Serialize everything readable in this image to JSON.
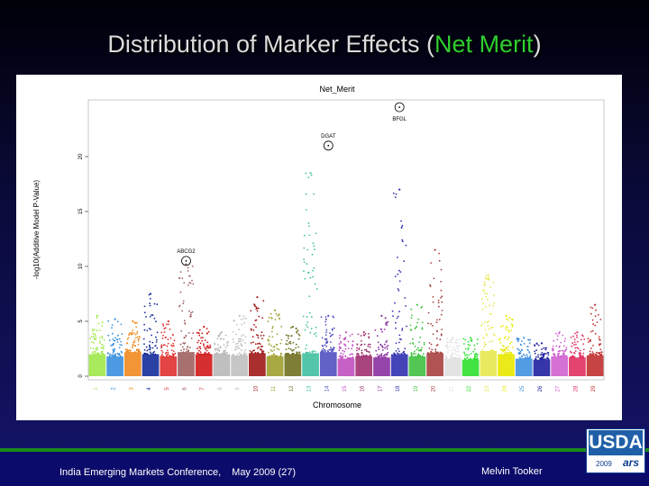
{
  "slide": {
    "title_prefix": "Distribution of Marker Effects (",
    "title_highlight": "Net Merit",
    "title_suffix": ")"
  },
  "footer": {
    "conference": "India Emerging Markets Conference,",
    "date": "May 2009 (27)",
    "presenter": "Melvin Tooker"
  },
  "logo": {
    "name": "USDA",
    "year": "2009",
    "agency": "ars"
  },
  "chart_data": {
    "type": "scatter",
    "title": "Net_Merit",
    "xlabel": "Chromosome",
    "ylabel": "-log10(Additive Model P-Value)",
    "ylim": [
      0,
      25
    ],
    "yticks": [
      0,
      5,
      10,
      15,
      20
    ],
    "categories": [
      "1",
      "2",
      "3",
      "4",
      "5",
      "6",
      "7",
      "8",
      "9",
      "10",
      "11",
      "12",
      "13",
      "14",
      "15",
      "16",
      "17",
      "18",
      "19",
      "20",
      "21",
      "22",
      "23",
      "24",
      "25",
      "26",
      "27",
      "28",
      "29"
    ],
    "colors": [
      "#9fe84a",
      "#3a8fe0",
      "#f08a20",
      "#142c9a",
      "#e03030",
      "#a06060",
      "#d01818",
      "#b8b8b8",
      "#c0c0c0",
      "#a01818",
      "#a0a030",
      "#707020",
      "#40c0a0",
      "#5050c0",
      "#c050c0",
      "#a03070",
      "#8a30a0",
      "#3030b0",
      "#40c040",
      "#a84040",
      "#e0e0e0",
      "#30e030",
      "#e8e850",
      "#e8e800",
      "#4090e0",
      "#2020a0",
      "#d060d0",
      "#e03060",
      "#c03030"
    ],
    "band_heights": [
      2.0,
      1.8,
      2.2,
      2.0,
      1.8,
      2.2,
      2.0,
      2.0,
      1.9,
      2.1,
      1.8,
      2.0,
      2.1,
      2.2,
      1.6,
      1.8,
      1.7,
      2.0,
      1.8,
      2.1,
      1.6,
      1.5,
      2.3,
      2.0,
      1.6,
      1.5,
      1.8,
      1.7,
      1.9
    ],
    "chromosome_peaks": [
      5.5,
      5.2,
      5.0,
      7.5,
      5.0,
      10.2,
      4.5,
      4.0,
      5.5,
      7.2,
      6.0,
      4.5,
      18.5,
      5.5,
      4.0,
      4.0,
      5.5,
      17.0,
      6.5,
      11.5,
      3.5,
      3.5,
      9.2,
      5.5,
      3.5,
      3.0,
      4.0,
      4.0,
      6.5
    ],
    "annotations": [
      {
        "label": "ABCG2",
        "chromosome": "6",
        "value": 10.5
      },
      {
        "label": "DGAT",
        "chromosome": "14",
        "value": 21.0
      },
      {
        "label": "BFGL",
        "chromosome": "18",
        "value": 24.5
      }
    ]
  }
}
